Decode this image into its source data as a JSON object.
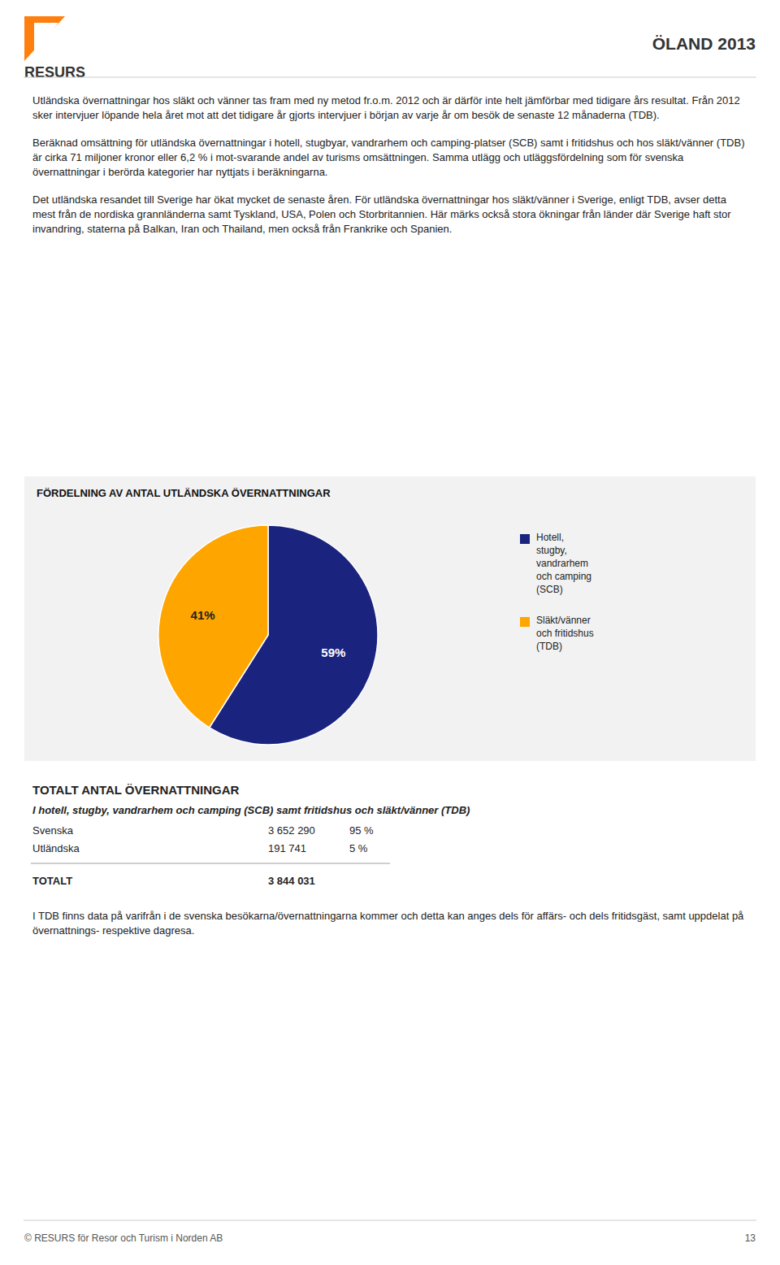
{
  "header": {
    "brand": "RESURS",
    "title": "ÖLAND 2013"
  },
  "paragraphs": [
    "Utländska övernattningar hos släkt och vänner tas fram med ny metod fr.o.m. 2012 och är därför inte helt jämförbar med tidigare års resultat. Från 2012 sker intervjuer löpande hela året mot att det tidigare år gjorts intervjuer i början av varje år om besök de senaste 12 månaderna (TDB).",
    "Beräknad omsättning för utländska övernattningar i hotell, stugbyar, vandrarhem och camping-platser (SCB) samt i fritidshus och hos släkt/vänner (TDB) är cirka 71 miljoner kronor eller 6,2 % i mot-svarande andel av turisms omsättningen. Samma utlägg och utläggsfördelning som för svenska övernattningar i berörda kategorier har nyttjats i beräkningarna.",
    "Det utländska resandet till Sverige har ökat mycket de senaste åren. För utländska övernattningar hos släkt/vänner i Sverige, enligt TDB, avser detta mest från de nordiska grannländerna samt Tyskland, USA, Polen och Storbritannien. Här märks också stora ökningar från länder där Sverige haft stor invandring, staterna på Balkan, Iran och Thailand, men också från Frankrike och Spanien."
  ],
  "chart_data": {
    "type": "pie",
    "title": "FÖRDELNING AV ANTAL UTLÄNDSKA ÖVERNATTNINGAR",
    "categories": [
      "Hotell,\nstugby,\nvandrarhem\noch camping\n(SCB)",
      "Släkt/vänner\noch fritidshus\n(TDB)"
    ],
    "values": [
      59,
      41
    ],
    "value_labels": [
      "59%",
      "41%"
    ],
    "colors": [
      "#1a237e",
      "#ffa500"
    ],
    "data_labels": true,
    "legend": "right"
  },
  "table": {
    "title": "TOTALT ANTAL ÖVERNATTNINGAR",
    "subtitle": "I hotell, stugby, vandrarhem och camping (SCB) samt fritidshus och släkt/vänner (TDB)",
    "rows": [
      [
        "Svenska",
        "3 652 290",
        "95 %"
      ],
      [
        "Utländska",
        "191 741",
        "5 %"
      ]
    ],
    "total_label": "TOTALT",
    "total_value": "3 844 031",
    "note": "I TDB finns data på varifrån i de svenska besökarna/övernattningarna kommer och detta kan anges dels för affärs- och dels fritidsgäst, samt uppdelat på övernattnings- respektive dagresa."
  },
  "footer": {
    "text": "© RESURS för Resor och Turism i Norden AB",
    "page": "13"
  }
}
